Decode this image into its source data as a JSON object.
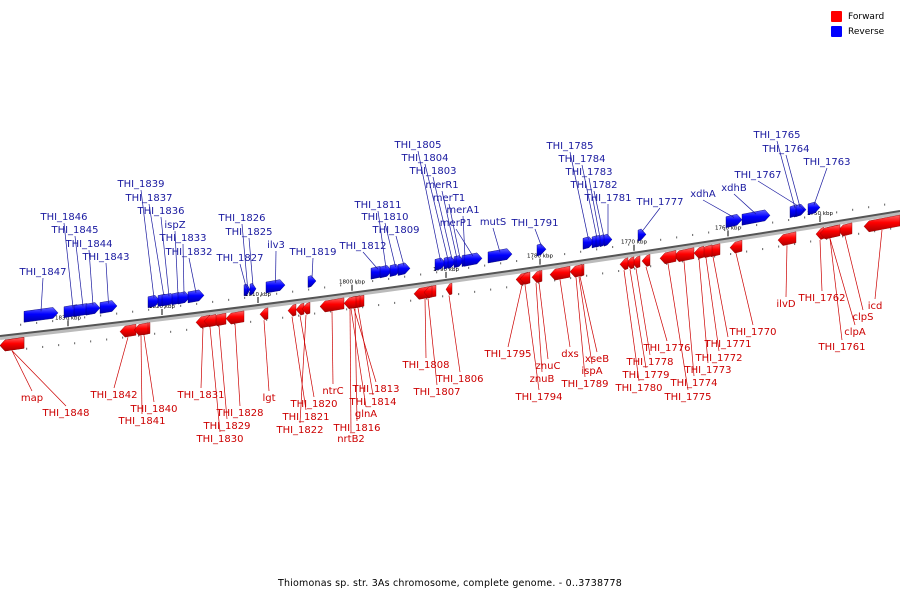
{
  "legend": {
    "forward_label": "Forward",
    "reverse_label": "Reverse",
    "forward_color": "#ff0000",
    "reverse_color": "#0000ff"
  },
  "caption": "Thiomonas sp. str. 3As chromosome, complete genome. - 0..3738778",
  "colors": {
    "forward_label_color": "#cc0000",
    "reverse_label_color": "#1a1aa0",
    "axis_color": "#888888"
  },
  "scale_ticks": [
    {
      "label": "1830 kbp"
    },
    {
      "label": "1820 kbp"
    },
    {
      "label": "1810 kbp"
    },
    {
      "label": "1800 kbp"
    },
    {
      "label": "1790 kbp"
    },
    {
      "label": "1780 kbp"
    },
    {
      "label": "1770 kbp"
    },
    {
      "label": "1760 kbp"
    },
    {
      "label": "1750 kbp"
    }
  ],
  "reverse_genes": [
    "THI_1847",
    "THI_1846",
    "THI_1845",
    "THI_1844",
    "THI_1843",
    "THI_1839",
    "THI_1837",
    "THI_1836",
    "ispZ",
    "THI_1833",
    "THI_1832",
    "THI_1826",
    "THI_1825",
    "THI_1827",
    "ilv3",
    "THI_1819",
    "THI_1812",
    "THI_1811",
    "THI_1810",
    "THI_1809",
    "THI_1805",
    "THI_1804",
    "THI_1803",
    "merR1",
    "merT1",
    "merA1",
    "merP1",
    "mutS",
    "THI_1791",
    "THI_1785",
    "THI_1784",
    "THI_1783",
    "THI_1782",
    "THI_1781",
    "THI_1777",
    "xdhA",
    "xdhB",
    "THI_1767",
    "THI_1765",
    "THI_1764",
    "THI_1763"
  ],
  "forward_genes": [
    "map",
    "THI_1848",
    "THI_1842",
    "THI_1840",
    "THI_1841",
    "THI_1831",
    "THI_1828",
    "THI_1829",
    "THI_1830",
    "lgt",
    "THI_1820",
    "THI_1821",
    "THI_1822",
    "ntrC",
    "THI_1813",
    "THI_1814",
    "glnA",
    "THI_1816",
    "nrtB2",
    "THI_1808",
    "THI_1806",
    "THI_1807",
    "THI_1795",
    "znuC",
    "znuB",
    "THI_1794",
    "dxs",
    "xseB",
    "ispA",
    "THI_1789",
    "THI_1776",
    "THI_1778",
    "THI_1779",
    "THI_1780",
    "THI_1771",
    "THI_1772",
    "THI_1773",
    "THI_1774",
    "THI_1775",
    "THI_1770",
    "ilvD",
    "THI_1762",
    "clpS",
    "icd",
    "clpA",
    "THI_1761"
  ]
}
